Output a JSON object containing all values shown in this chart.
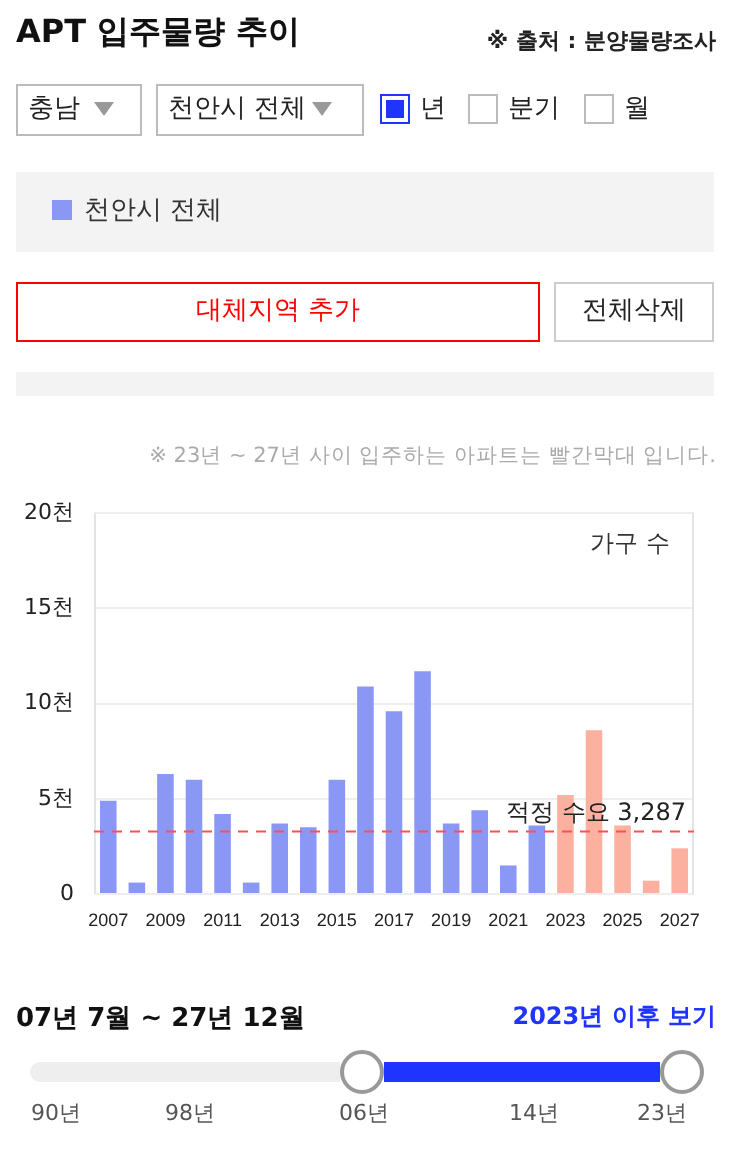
{
  "chart_data": {
    "type": "bar",
    "title": "APT 입주물량 추이",
    "categories": [
      "2007",
      null,
      "2009",
      null,
      "2011",
      null,
      "2013",
      null,
      "2015",
      null,
      "2017",
      null,
      "2019",
      null,
      "2021",
      null,
      "2023",
      null,
      "2025",
      null,
      "2027"
    ],
    "series": [
      {
        "name": "천안시 전체",
        "color": "#8a97f5",
        "values": [
          4.9,
          0.6,
          6.3,
          6.0,
          4.2,
          0.6,
          3.7,
          3.5,
          6.0,
          10.9,
          9.6,
          11.7,
          3.7,
          4.4,
          1.5,
          3.6,
          5.2,
          8.6,
          3.6,
          0.7,
          2.4
        ],
        "colors": [
          "#8a97f5",
          "#8a97f5",
          "#8a97f5",
          "#8a97f5",
          "#8a97f5",
          "#8a97f5",
          "#8a97f5",
          "#8a97f5",
          "#8a97f5",
          "#8a97f5",
          "#8a97f5",
          "#8a97f5",
          "#8a97f5",
          "#8a97f5",
          "#8a97f5",
          "#8a97f5",
          "#fbb0a0",
          "#fbb0a0",
          "#fbb0a0",
          "#fbb0a0",
          "#fbb0a0"
        ]
      }
    ],
    "ylim": [
      0,
      20
    ],
    "yticks": [
      0,
      {
        "value": 5,
        "label": "5천"
      },
      {
        "value": 10,
        "label": "10천"
      },
      {
        "value": 15,
        "label": "15천"
      },
      {
        "value": 20,
        "label": "20천"
      }
    ],
    "grid": "y",
    "legend": "top left",
    "ref_lines": [
      {
        "axis": "y",
        "value": 3.287,
        "label": "적정 수요 3,287",
        "color": "#ff5050",
        "line_style": "dashed"
      }
    ],
    "annotations": [
      "가구 수",
      "※ 출처 : 분양물량조사",
      "※ 23년 ~ 27년 사이 입주하는 아파트는 빨간막대 입니다.",
      "충남",
      "천안시 전체",
      "년",
      "분기",
      "월",
      "대체지역 추가",
      "전체삭제",
      "07년 7월 ~ 27년 12월",
      "2023년 이후 보기",
      "90년",
      "98년",
      "06년",
      "14년",
      "23년"
    ]
  }
}
